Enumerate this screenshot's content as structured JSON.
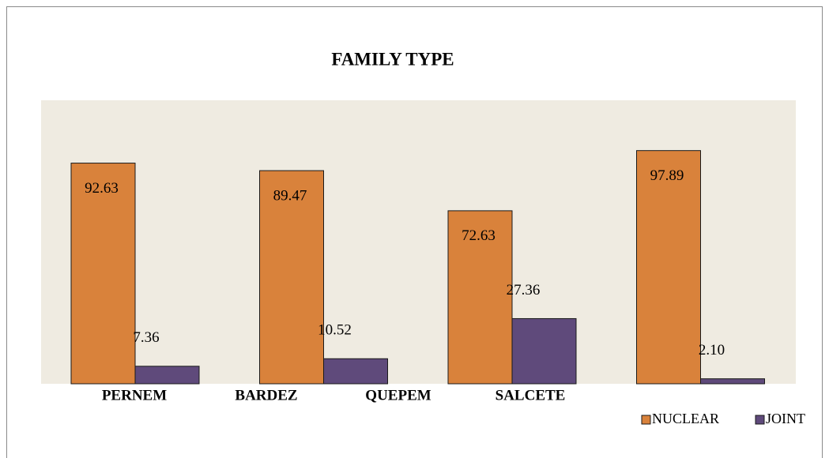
{
  "chart_data": {
    "type": "bar",
    "title": "FAMILY TYPE",
    "categories": [
      "PERNEM",
      "BARDEZ",
      "QUEPEM",
      "SALCETE"
    ],
    "series": [
      {
        "name": "NUCLEAR",
        "color": "#d9823b",
        "values": [
          92.63,
          89.47,
          72.63,
          97.89
        ]
      },
      {
        "name": "JOINT",
        "color": "#5f4a7b",
        "values": [
          7.36,
          10.52,
          27.36,
          2.1
        ],
        "value_labels": [
          "7.36",
          "10.52",
          "27.36",
          "2.10"
        ]
      }
    ],
    "ylim": [
      0,
      119
    ],
    "legend": "bottom-right",
    "background": "#efebe1"
  }
}
